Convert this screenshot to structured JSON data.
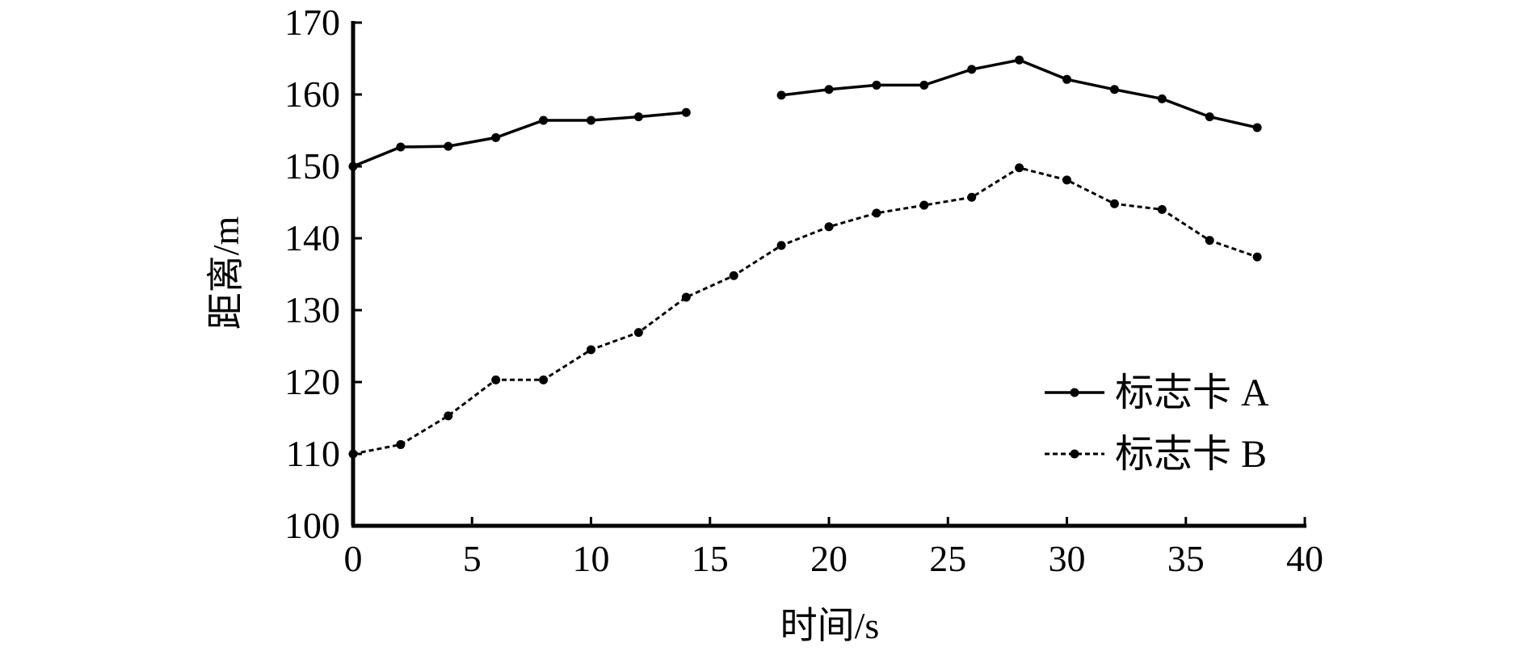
{
  "chart_data": {
    "type": "line",
    "xlabel": "时间/s",
    "ylabel": "距离/m",
    "xlim": [
      0,
      40
    ],
    "ylim": [
      100,
      170
    ],
    "xticks": [
      0,
      5,
      10,
      15,
      20,
      25,
      30,
      35,
      40
    ],
    "yticks": [
      100,
      110,
      120,
      130,
      140,
      150,
      160,
      170
    ],
    "grid": false,
    "legend_position": "bottom-right",
    "series": [
      {
        "name": "标志卡 A",
        "style": "solid",
        "x": [
          0,
          2,
          4,
          6,
          8,
          10,
          12,
          14,
          18,
          20,
          22,
          24,
          26,
          28,
          30,
          32,
          34,
          36,
          38
        ],
        "y": [
          150,
          152.7,
          152.8,
          154,
          156.4,
          156.4,
          156.9,
          157.5,
          159.9,
          160.7,
          161.3,
          161.3,
          163.5,
          164.8,
          162.1,
          160.7,
          159.4,
          156.9,
          155.4
        ]
      },
      {
        "name": "标志卡 B",
        "style": "dashed",
        "x": [
          0,
          2,
          4,
          6,
          8,
          10,
          12,
          14,
          16,
          18,
          20,
          22,
          24,
          26,
          28,
          30,
          32,
          34,
          36,
          38
        ],
        "y": [
          110,
          111.3,
          115.3,
          120.3,
          120.3,
          124.5,
          126.9,
          131.8,
          134.8,
          139,
          141.6,
          143.5,
          144.6,
          145.7,
          149.8,
          148.1,
          144.8,
          144,
          139.7,
          137.4
        ]
      }
    ]
  }
}
